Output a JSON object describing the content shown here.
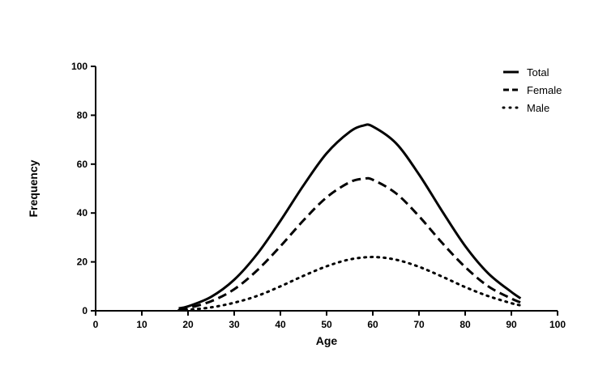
{
  "chart_data": {
    "type": "line",
    "title": "",
    "xlabel": "Age",
    "ylabel": "Frequency",
    "xlim": [
      0,
      100
    ],
    "ylim": [
      0,
      100
    ],
    "xticks": [
      "0",
      "10",
      "20",
      "30",
      "40",
      "50",
      "60",
      "70",
      "80",
      "90",
      "100"
    ],
    "yticks": [
      "0",
      "20",
      "40",
      "60",
      "80",
      "100"
    ],
    "grid": false,
    "legend_position": "top-right",
    "series": [
      {
        "name": "Total",
        "style": "solid",
        "color": "#000000",
        "x": [
          18,
          20,
          25,
          30,
          35,
          40,
          45,
          50,
          55,
          58,
          60,
          65,
          70,
          75,
          80,
          85,
          90,
          92
        ],
        "y": [
          1,
          1.8,
          5.7,
          12.7,
          23.3,
          36.8,
          51.3,
          64.4,
          73.2,
          75.8,
          75.4,
          68.6,
          55.8,
          40.8,
          26.5,
          15.3,
          7.7,
          5.1
        ]
      },
      {
        "name": "Female",
        "style": "dashed",
        "color": "#000000",
        "x": [
          18,
          20,
          25,
          30,
          35,
          40,
          45,
          50,
          55,
          58,
          60,
          65,
          70,
          75,
          80,
          85,
          90,
          92
        ],
        "y": [
          0.5,
          1.1,
          3.9,
          8.8,
          16.6,
          26.4,
          37.0,
          46.4,
          52.6,
          54.0,
          53.6,
          48.1,
          38.7,
          27.8,
          17.9,
          10.0,
          5.0,
          3.4
        ]
      },
      {
        "name": "Male",
        "style": "dotted",
        "color": "#000000",
        "x": [
          18,
          20,
          25,
          30,
          35,
          40,
          45,
          50,
          55,
          60,
          65,
          70,
          75,
          80,
          85,
          90,
          92
        ],
        "y": [
          0.2,
          0.4,
          1.4,
          3.3,
          6.1,
          10.0,
          14.3,
          18.2,
          21.0,
          22.0,
          20.9,
          18.0,
          14.0,
          9.7,
          6.0,
          3.1,
          2.2
        ]
      }
    ]
  }
}
